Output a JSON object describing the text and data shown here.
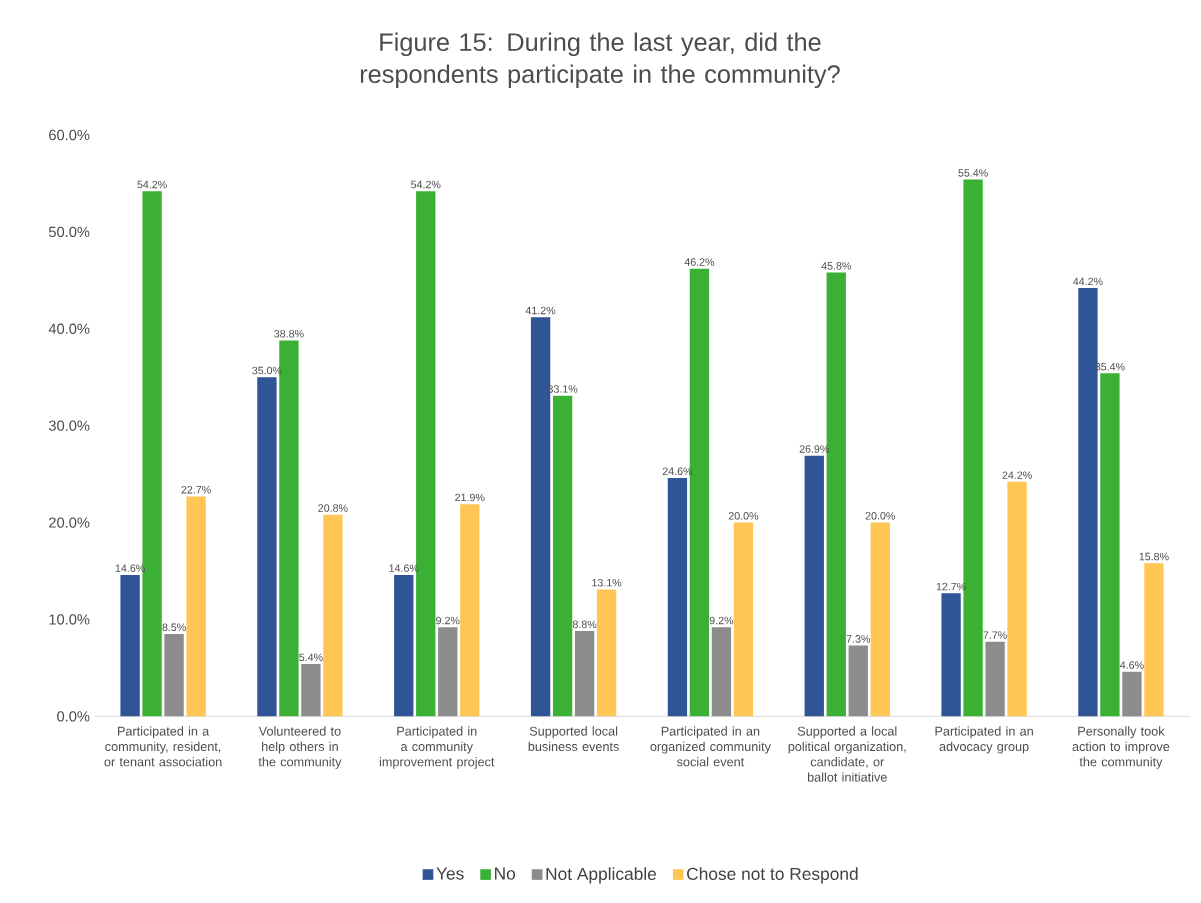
{
  "chart_data": {
    "type": "bar",
    "title": "Figure 15: During the last year, did the respondents participate in the community?",
    "categories": [
      "Participated in a community, resident, or tenant association",
      "Volunteered to help others in the community",
      "Participated in a community improvement project",
      "Supported local business events",
      "Participated in an organized community social event",
      "Supported a local political organization, candidate, or ballot initiative",
      "Participated in an advocacy group",
      "Personally took action to improve the community"
    ],
    "series": [
      {
        "name": "Yes",
        "color": "#2f5597",
        "values": [
          14.6,
          35.0,
          14.6,
          41.2,
          24.6,
          26.9,
          12.7,
          44.2
        ],
        "value_labels": [
          "14.6%",
          "35.0%",
          "14.6%",
          "41.2%",
          "24.6%",
          "26.9%",
          "12.7%",
          "44.2%"
        ]
      },
      {
        "name": "No",
        "color": "#3cb034",
        "values": [
          54.2,
          38.8,
          54.2,
          33.1,
          46.2,
          45.8,
          55.4,
          35.4
        ],
        "value_labels": [
          "54.2%",
          "38.8%",
          "54.2%",
          "33.1%",
          "46.2%",
          "45.8%",
          "55.4%",
          "35.4%"
        ]
      },
      {
        "name": "Not Applicable",
        "color": "#8c8c8c",
        "values": [
          8.5,
          5.4,
          9.2,
          8.8,
          9.2,
          7.3,
          7.7,
          4.6
        ],
        "value_labels": [
          "8.5%",
          "5.4%",
          "9.2%",
          "8.8%",
          "9.2%",
          "7.3%",
          "7.7%",
          "4.6%"
        ]
      },
      {
        "name": "Chose not to Respond",
        "color": "#ffc655",
        "values": [
          22.7,
          20.8,
          21.9,
          13.1,
          20.0,
          20.0,
          24.2,
          15.8
        ],
        "value_labels": [
          "22.7%",
          "20.8%",
          "21.9%",
          "13.1%",
          "20.0%",
          "20.0%",
          "24.2%",
          "15.8%"
        ]
      }
    ],
    "ylim": [
      0,
      60
    ],
    "yticks": [
      {
        "value": 0,
        "label": "0.0%"
      },
      {
        "value": 10,
        "label": "10.0%"
      },
      {
        "value": 20,
        "label": "20.0%"
      },
      {
        "value": 30,
        "label": "30.0%"
      },
      {
        "value": 40,
        "label": "40.0%"
      },
      {
        "value": 50,
        "label": "50.0%"
      },
      {
        "value": 60,
        "label": "60.0%"
      }
    ],
    "legend": "bottom"
  }
}
